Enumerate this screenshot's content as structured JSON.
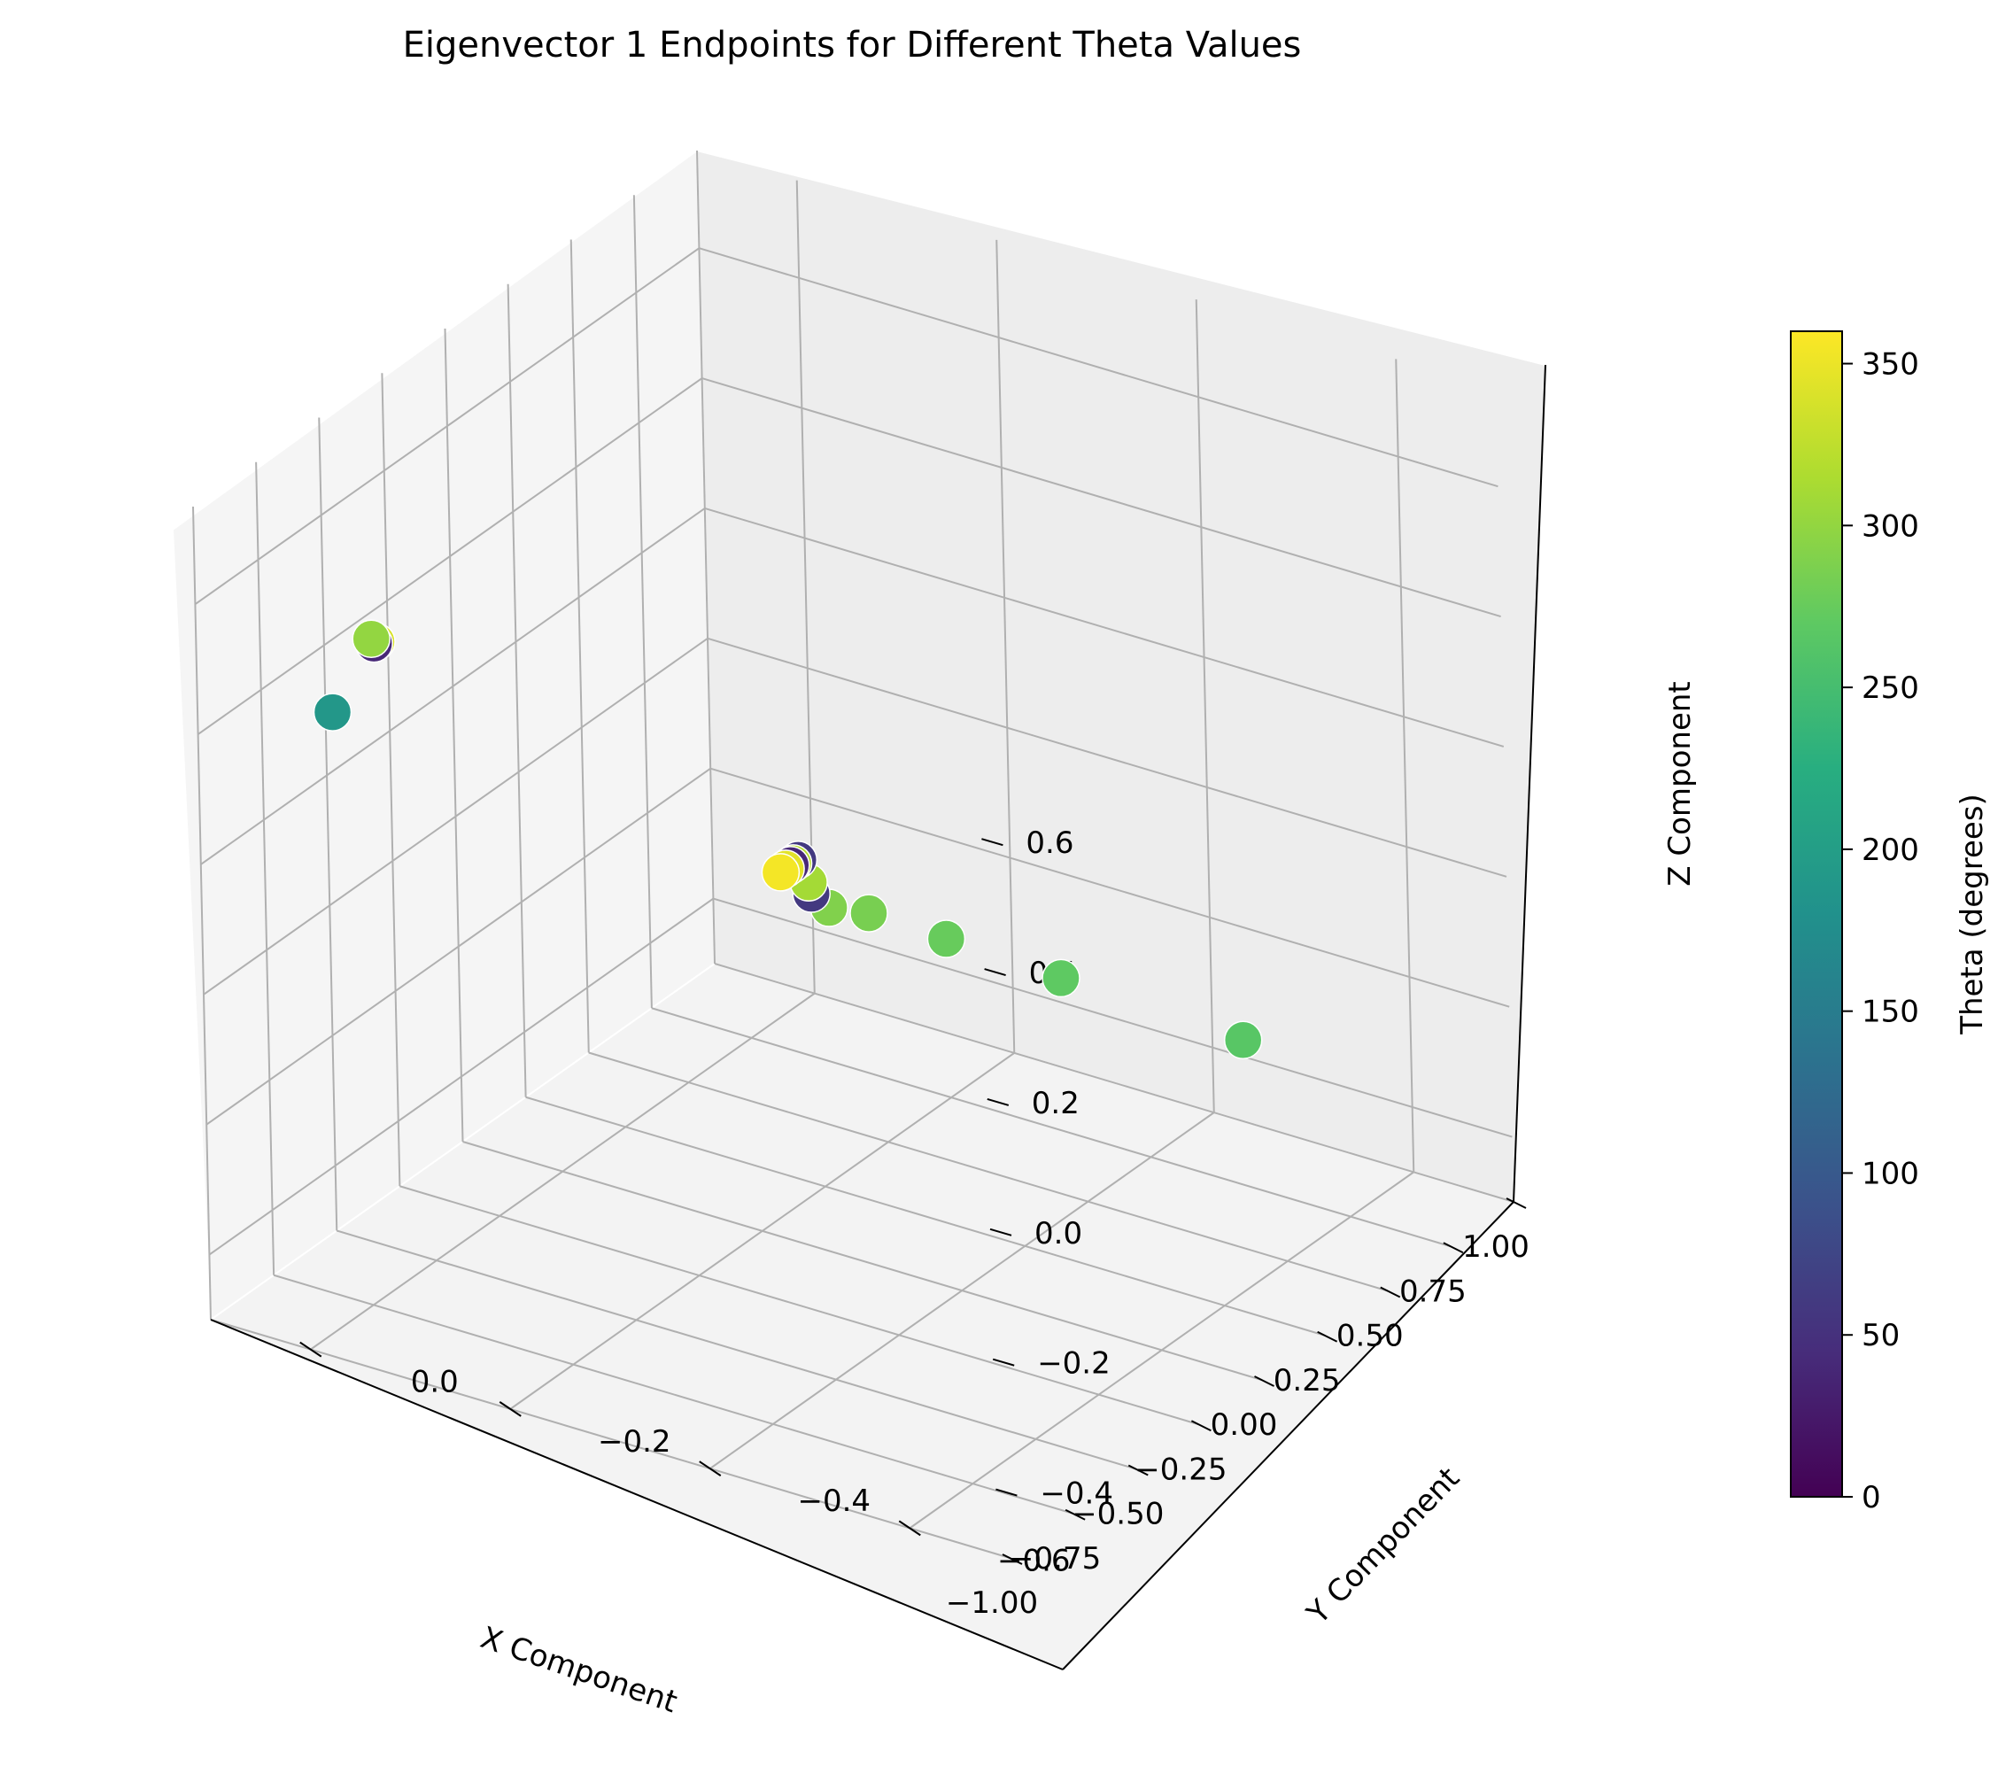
{
  "chart_data": {
    "type": "scatter",
    "projection": "3d",
    "title": "Eigenvector 1 Endpoints for Different Theta Values",
    "xlabel": "X Component",
    "ylabel": "Y Component",
    "zlabel": "Z Component",
    "xlim": [
      -1.0,
      1.0
    ],
    "ylim": [
      -0.7,
      0.1
    ],
    "zlim": [
      -0.5,
      0.75
    ],
    "xticks": [
      "−1.00",
      "−0.75",
      "−0.50",
      "−0.25",
      "0.00",
      "0.25",
      "0.50",
      "0.75",
      "1.00"
    ],
    "yticks": [
      "−0.6",
      "−0.4",
      "−0.2",
      "0.0"
    ],
    "zticks": [
      "−0.4",
      "−0.2",
      "0.0",
      "0.2",
      "0.4",
      "0.6"
    ],
    "grid": true,
    "colormap": "viridis",
    "colorbar": {
      "label": "Theta (degrees)",
      "range": [
        0,
        360
      ],
      "ticks": [
        "0",
        "50",
        "100",
        "150",
        "200",
        "250",
        "300",
        "350"
      ]
    },
    "points": [
      {
        "x": -0.55,
        "y": 0.08,
        "z": 0.32,
        "theta": 190
      },
      {
        "x": -0.47,
        "y": 0.06,
        "z": 0.42,
        "theta": 300
      },
      {
        "x": -0.46,
        "y": 0.06,
        "z": 0.41,
        "theta": 40
      },
      {
        "x": -0.45,
        "y": 0.06,
        "z": 0.41,
        "theta": 340
      },
      {
        "x": 0.8,
        "y": -0.02,
        "z": -0.25,
        "theta": 355
      },
      {
        "x": 0.82,
        "y": -0.02,
        "z": -0.25,
        "theta": 345
      },
      {
        "x": 0.84,
        "y": -0.02,
        "z": -0.25,
        "theta": 40
      },
      {
        "x": 0.85,
        "y": -0.02,
        "z": -0.25,
        "theta": 320
      },
      {
        "x": 0.87,
        "y": -0.02,
        "z": -0.25,
        "theta": 60
      },
      {
        "x": 0.87,
        "y": -0.03,
        "z": -0.28,
        "theta": 310
      },
      {
        "x": 0.88,
        "y": -0.03,
        "z": -0.3,
        "theta": 60
      },
      {
        "x": 0.87,
        "y": -0.05,
        "z": -0.31,
        "theta": 290
      },
      {
        "x": 0.87,
        "y": -0.09,
        "z": -0.3,
        "theta": 285
      },
      {
        "x": 0.86,
        "y": -0.17,
        "z": -0.3,
        "theta": 275
      },
      {
        "x": 0.84,
        "y": -0.29,
        "z": -0.3,
        "theta": 270
      },
      {
        "x": 0.81,
        "y": -0.48,
        "z": -0.3,
        "theta": 265
      }
    ]
  }
}
